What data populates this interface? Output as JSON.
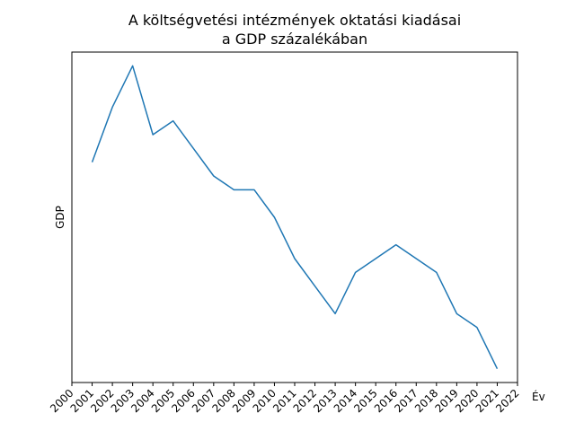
{
  "chart_data": {
    "type": "line",
    "title_line1": "A költségvetési intézmények oktatási kiadásai",
    "title_line2": "a GDP százalékában",
    "xlabel": "Év",
    "ylabel": "GDP",
    "xlim": [
      2000,
      2022
    ],
    "ylim": [
      0,
      24
    ],
    "x_ticks": [
      2000,
      2001,
      2002,
      2003,
      2004,
      2005,
      2006,
      2007,
      2008,
      2009,
      2010,
      2011,
      2012,
      2013,
      2014,
      2015,
      2016,
      2017,
      2018,
      2019,
      2020,
      2021,
      2022
    ],
    "y_ticks": [],
    "grid": false,
    "legend": "none",
    "series": [
      {
        "color": "#1f77b4",
        "x": [
          2001,
          2002,
          2003,
          2004,
          2005,
          2006,
          2007,
          2008,
          2009,
          2010,
          2011,
          2012,
          2013,
          2014,
          2015,
          2016,
          2017,
          2018,
          2019,
          2020,
          2021
        ],
        "y": [
          16,
          20,
          23,
          18,
          19,
          17,
          15,
          14,
          14,
          12,
          9,
          7,
          5,
          8,
          9,
          10,
          9,
          8,
          5,
          4,
          1
        ]
      }
    ]
  }
}
